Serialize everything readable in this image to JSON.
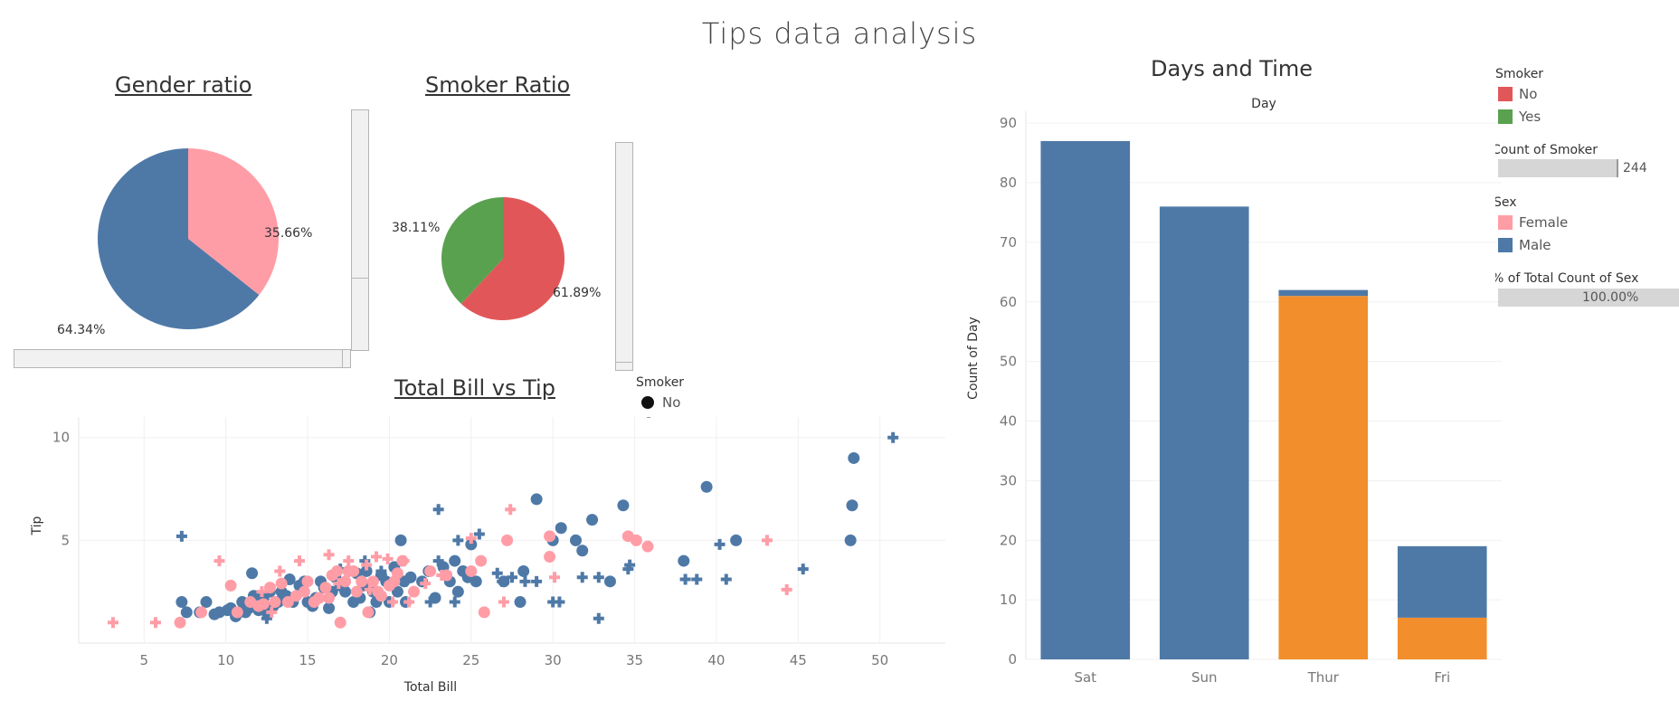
{
  "title": "Tips data analysis",
  "gender_panel": {
    "title": "Gender ratio",
    "labels": [
      "35.66%",
      "64.34%"
    ]
  },
  "smoker_panel": {
    "title": "Smoker Ratio",
    "labels": [
      "38.11%",
      "61.89%"
    ]
  },
  "scatter_panel": {
    "title": "Total Bill vs Tip",
    "legend_title": "Smoker",
    "legend_item": "No"
  },
  "days_panel": {
    "title": "Days and Time"
  },
  "legend": {
    "smoker_title": "Smoker",
    "smoker_no": "No",
    "smoker_yes": "Yes",
    "count_smoker_title": "Count of Smoker",
    "count_smoker_value": "244",
    "sex_title": "Sex",
    "sex_female": "Female",
    "sex_male": "Male",
    "pct_total_title": "% of Total Count of Sex",
    "pct_total_value": "100.00%"
  },
  "colors": {
    "female": "#ff9da7",
    "male": "#4e79a7",
    "smoker_no": "#e15759",
    "smoker_yes": "#59a14f",
    "orange": "#f28e2b"
  },
  "chart_data": [
    {
      "type": "pie",
      "title": "Gender ratio",
      "slices": [
        {
          "name": "Female",
          "value": 35.66,
          "label": "35.66%"
        },
        {
          "name": "Male",
          "value": 64.34,
          "label": "64.34%"
        }
      ]
    },
    {
      "type": "pie",
      "title": "Smoker Ratio",
      "slices": [
        {
          "name": "No",
          "value": 61.89,
          "label": "61.89%"
        },
        {
          "name": "Yes",
          "value": 38.11,
          "label": "38.11%"
        }
      ]
    },
    {
      "type": "scatter",
      "title": "Total Bill vs Tip",
      "xlabel": "Total Bill",
      "ylabel": "Tip",
      "xlim": [
        1,
        54
      ],
      "ylim": [
        0,
        11
      ],
      "xticks": [
        5,
        10,
        15,
        20,
        25,
        30,
        35,
        40,
        45,
        50
      ],
      "yticks": [
        5,
        10
      ],
      "series": [
        {
          "name": "Male",
          "marker": "circle",
          "points": [
            [
              7.3,
              2.0
            ],
            [
              7.6,
              1.5
            ],
            [
              8.4,
              1.5
            ],
            [
              8.8,
              2.0
            ],
            [
              9.3,
              1.4
            ],
            [
              9.6,
              1.5
            ],
            [
              10.1,
              1.6
            ],
            [
              10.3,
              1.7
            ],
            [
              10.6,
              1.3
            ],
            [
              10.8,
              1.5
            ],
            [
              11.0,
              2.0
            ],
            [
              11.2,
              1.5
            ],
            [
              11.4,
              1.7
            ],
            [
              11.6,
              3.4
            ],
            [
              11.7,
              2.3
            ],
            [
              12.0,
              1.6
            ],
            [
              12.3,
              2.2
            ],
            [
              12.5,
              1.5
            ],
            [
              12.7,
              2.5
            ],
            [
              12.9,
              1.8
            ],
            [
              13.2,
              2.0
            ],
            [
              13.4,
              2.5
            ],
            [
              13.7,
              2.3
            ],
            [
              13.9,
              3.1
            ],
            [
              14.1,
              2.0
            ],
            [
              14.5,
              2.8
            ],
            [
              14.8,
              3.0
            ],
            [
              15.0,
              2.0
            ],
            [
              15.3,
              1.8
            ],
            [
              15.5,
              2.2
            ],
            [
              15.8,
              3.0
            ],
            [
              16.0,
              2.7
            ],
            [
              16.3,
              1.7
            ],
            [
              16.5,
              2.5
            ],
            [
              16.7,
              3.2
            ],
            [
              17.0,
              2.8
            ],
            [
              17.3,
              2.5
            ],
            [
              17.5,
              3.5
            ],
            [
              17.8,
              2.0
            ],
            [
              18.0,
              3.4
            ],
            [
              18.2,
              2.2
            ],
            [
              18.4,
              2.8
            ],
            [
              18.6,
              3.5
            ],
            [
              18.8,
              1.5
            ],
            [
              19.0,
              2.5
            ],
            [
              19.2,
              2.0
            ],
            [
              19.5,
              3.3
            ],
            [
              19.8,
              3.0
            ],
            [
              20.0,
              2.0
            ],
            [
              20.3,
              3.7
            ],
            [
              20.5,
              2.5
            ],
            [
              20.7,
              5.0
            ],
            [
              20.9,
              3.0
            ],
            [
              21.0,
              2.0
            ],
            [
              21.3,
              3.2
            ],
            [
              22.0,
              3.0
            ],
            [
              22.4,
              3.5
            ],
            [
              22.8,
              2.2
            ],
            [
              23.3,
              3.7
            ],
            [
              23.7,
              3.0
            ],
            [
              24.0,
              4.0
            ],
            [
              24.2,
              2.5
            ],
            [
              24.5,
              3.5
            ],
            [
              24.8,
              3.2
            ],
            [
              25.0,
              4.8
            ],
            [
              25.3,
              3.0
            ],
            [
              27.0,
              3.0
            ],
            [
              28.0,
              2.0
            ],
            [
              28.2,
              3.5
            ],
            [
              29.0,
              7.0
            ],
            [
              30.0,
              5.0
            ],
            [
              30.5,
              5.6
            ],
            [
              31.4,
              5.0
            ],
            [
              31.8,
              4.5
            ],
            [
              32.4,
              6.0
            ],
            [
              33.5,
              3.0
            ],
            [
              34.3,
              6.7
            ],
            [
              38.0,
              4.0
            ],
            [
              39.4,
              7.6
            ],
            [
              41.2,
              5.0
            ],
            [
              48.2,
              5.0
            ],
            [
              48.3,
              6.7
            ],
            [
              48.4,
              9.0
            ]
          ]
        },
        {
          "name": "Male",
          "marker": "plus",
          "points": [
            [
              7.3,
              5.2
            ],
            [
              12.5,
              1.2
            ],
            [
              16.5,
              2.5
            ],
            [
              17.0,
              3.6
            ],
            [
              18.5,
              4.0
            ],
            [
              19.5,
              3.5
            ],
            [
              21.0,
              3.0
            ],
            [
              22.5,
              2.0
            ],
            [
              23.0,
              4.0
            ],
            [
              23.0,
              6.5
            ],
            [
              24.0,
              2.0
            ],
            [
              24.2,
              5.0
            ],
            [
              25.5,
              5.3
            ],
            [
              26.6,
              3.4
            ],
            [
              26.9,
              3.0
            ],
            [
              27.5,
              3.2
            ],
            [
              28.3,
              3.0
            ],
            [
              29.0,
              3.0
            ],
            [
              30.0,
              2.0
            ],
            [
              30.4,
              2.0
            ],
            [
              31.8,
              3.2
            ],
            [
              32.8,
              3.2
            ],
            [
              32.8,
              1.2
            ],
            [
              34.6,
              3.6
            ],
            [
              34.7,
              3.8
            ],
            [
              38.1,
              3.1
            ],
            [
              38.8,
              3.1
            ],
            [
              40.2,
              4.8
            ],
            [
              40.6,
              3.1
            ],
            [
              45.3,
              3.6
            ],
            [
              50.8,
              10.0
            ]
          ]
        },
        {
          "name": "Female",
          "marker": "circle",
          "points": [
            [
              7.2,
              1.0
            ],
            [
              8.5,
              1.5
            ],
            [
              10.3,
              2.8
            ],
            [
              10.7,
              1.5
            ],
            [
              11.5,
              2.0
            ],
            [
              12.0,
              1.8
            ],
            [
              12.3,
              1.9
            ],
            [
              12.7,
              2.7
            ],
            [
              13.0,
              2.0
            ],
            [
              13.4,
              2.9
            ],
            [
              13.8,
              2.0
            ],
            [
              14.3,
              2.3
            ],
            [
              14.8,
              2.5
            ],
            [
              15.0,
              3.0
            ],
            [
              15.4,
              2.0
            ],
            [
              15.7,
              2.2
            ],
            [
              16.1,
              2.7
            ],
            [
              16.3,
              2.2
            ],
            [
              16.5,
              3.3
            ],
            [
              16.8,
              3.5
            ],
            [
              17.0,
              1.0
            ],
            [
              17.3,
              3.0
            ],
            [
              17.5,
              3.5
            ],
            [
              17.8,
              3.5
            ],
            [
              18.0,
              2.5
            ],
            [
              18.3,
              3.0
            ],
            [
              18.7,
              1.5
            ],
            [
              19.0,
              3.0
            ],
            [
              19.3,
              2.5
            ],
            [
              19.5,
              2.3
            ],
            [
              20.0,
              2.8
            ],
            [
              20.3,
              3.0
            ],
            [
              20.5,
              3.4
            ],
            [
              20.8,
              4.0
            ],
            [
              21.5,
              2.5
            ],
            [
              22.5,
              3.5
            ],
            [
              23.5,
              3.3
            ],
            [
              25.0,
              3.5
            ],
            [
              25.6,
              4.0
            ],
            [
              25.8,
              1.5
            ],
            [
              27.2,
              5.0
            ],
            [
              29.8,
              5.2
            ],
            [
              29.8,
              4.2
            ],
            [
              34.6,
              5.2
            ],
            [
              35.1,
              5.0
            ],
            [
              35.8,
              4.7
            ]
          ]
        },
        {
          "name": "Female",
          "marker": "plus",
          "points": [
            [
              3.1,
              1.0
            ],
            [
              5.7,
              1.0
            ],
            [
              9.6,
              4.0
            ],
            [
              12.2,
              2.5
            ],
            [
              12.8,
              1.5
            ],
            [
              13.3,
              3.5
            ],
            [
              14.5,
              4.0
            ],
            [
              16.3,
              4.3
            ],
            [
              16.9,
              2.9
            ],
            [
              17.5,
              4.0
            ],
            [
              18.6,
              3.8
            ],
            [
              18.8,
              2.6
            ],
            [
              19.2,
              4.2
            ],
            [
              19.9,
              4.1
            ],
            [
              20.2,
              2.0
            ],
            [
              20.9,
              4.0
            ],
            [
              21.2,
              2.0
            ],
            [
              22.2,
              2.9
            ],
            [
              23.2,
              3.3
            ],
            [
              25.0,
              5.1
            ],
            [
              27.0,
              2.0
            ],
            [
              27.4,
              6.5
            ],
            [
              30.1,
              3.2
            ],
            [
              43.1,
              5.0
            ],
            [
              44.3,
              2.6
            ]
          ]
        }
      ]
    },
    {
      "type": "bar",
      "title": "Days and Time",
      "header": "Day",
      "xlabel": "",
      "ylabel": "Count of Day",
      "ylim": [
        0,
        92
      ],
      "yticks": [
        0,
        10,
        20,
        30,
        40,
        50,
        60,
        70,
        80,
        90
      ],
      "categories": [
        "Sat",
        "Sun",
        "Thur",
        "Fri"
      ],
      "series": [
        {
          "values": [
            0,
            0,
            61,
            7
          ]
        },
        {
          "values": [
            87,
            76,
            1,
            12
          ]
        }
      ]
    }
  ]
}
